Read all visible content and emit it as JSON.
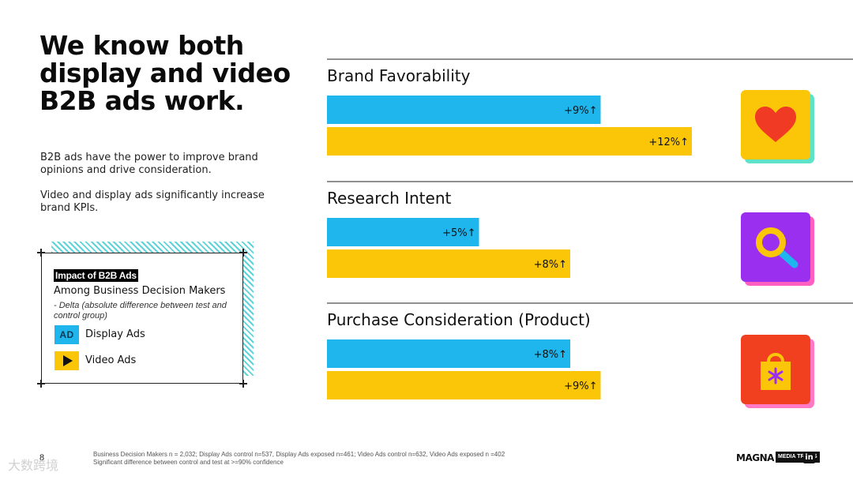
{
  "slide": {
    "headline": "We know both display and video B2B ads work.",
    "paragraph1": "B2B ads have the power to improve brand opinions and drive consideration.",
    "paragraph2": "Video and display ads significantly increase brand KPIs."
  },
  "legend": {
    "title": "Impact of B2B Ads",
    "subtitle": "Among Business Decision Makers",
    "note": "- Delta (absolute difference between test and control group)",
    "display_badge": "AD",
    "display_label": "Display Ads",
    "video_label": "Video Ads"
  },
  "colors": {
    "display": "#1fb6ee",
    "video": "#fbc508"
  },
  "icons": [
    "heart-icon",
    "magnifier-icon",
    "shopping-bag-icon"
  ],
  "chart_data": {
    "type": "bar",
    "orientation": "horizontal",
    "categories": [
      "Brand Favorability",
      "Research Intent",
      "Purchase Consideration (Product)"
    ],
    "series": [
      {
        "name": "Display Ads",
        "values": [
          9,
          5,
          8
        ],
        "labels": [
          "+9%↑",
          "+5%↑",
          "+8%↑"
        ]
      },
      {
        "name": "Video Ads",
        "values": [
          12,
          8,
          9
        ],
        "labels": [
          "+12%↑",
          "+8%↑",
          "+9%↑"
        ]
      }
    ],
    "xlim": [
      0,
      12
    ]
  },
  "footer": {
    "page_number": "8",
    "note_line1": "Business Decision Makers n = 2,032; Display Ads control n=537, Display Ads exposed n=461; Video Ads control n=632, Video Ads exposed n =402",
    "note_line2": "Significant difference between control and test at >=90% confidence",
    "brand_logo": "MAGNA",
    "brand_tag": "MEDIA TRIALS",
    "social_badge": "in",
    "watermark": "大数跨境"
  }
}
